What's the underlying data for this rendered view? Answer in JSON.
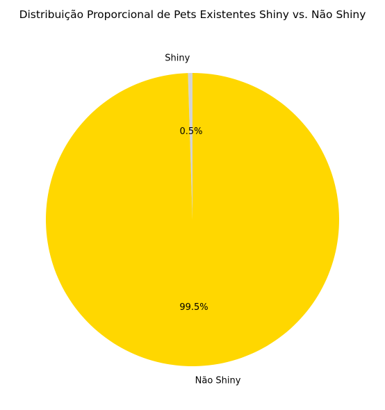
{
  "chart_data": {
    "type": "pie",
    "title": "Distribuição Proporcional de Pets Existentes Shiny vs. Não Shiny",
    "slices": [
      {
        "label": "Shiny",
        "value": 0.5,
        "pct_label": "0.5%",
        "color": "#d3d3d3"
      },
      {
        "label": "Não Shiny",
        "value": 99.5,
        "pct_label": "99.5%",
        "color": "#ffd700"
      }
    ],
    "start_angle_deg": 90,
    "direction": "counterclockwise",
    "legend": "none"
  }
}
